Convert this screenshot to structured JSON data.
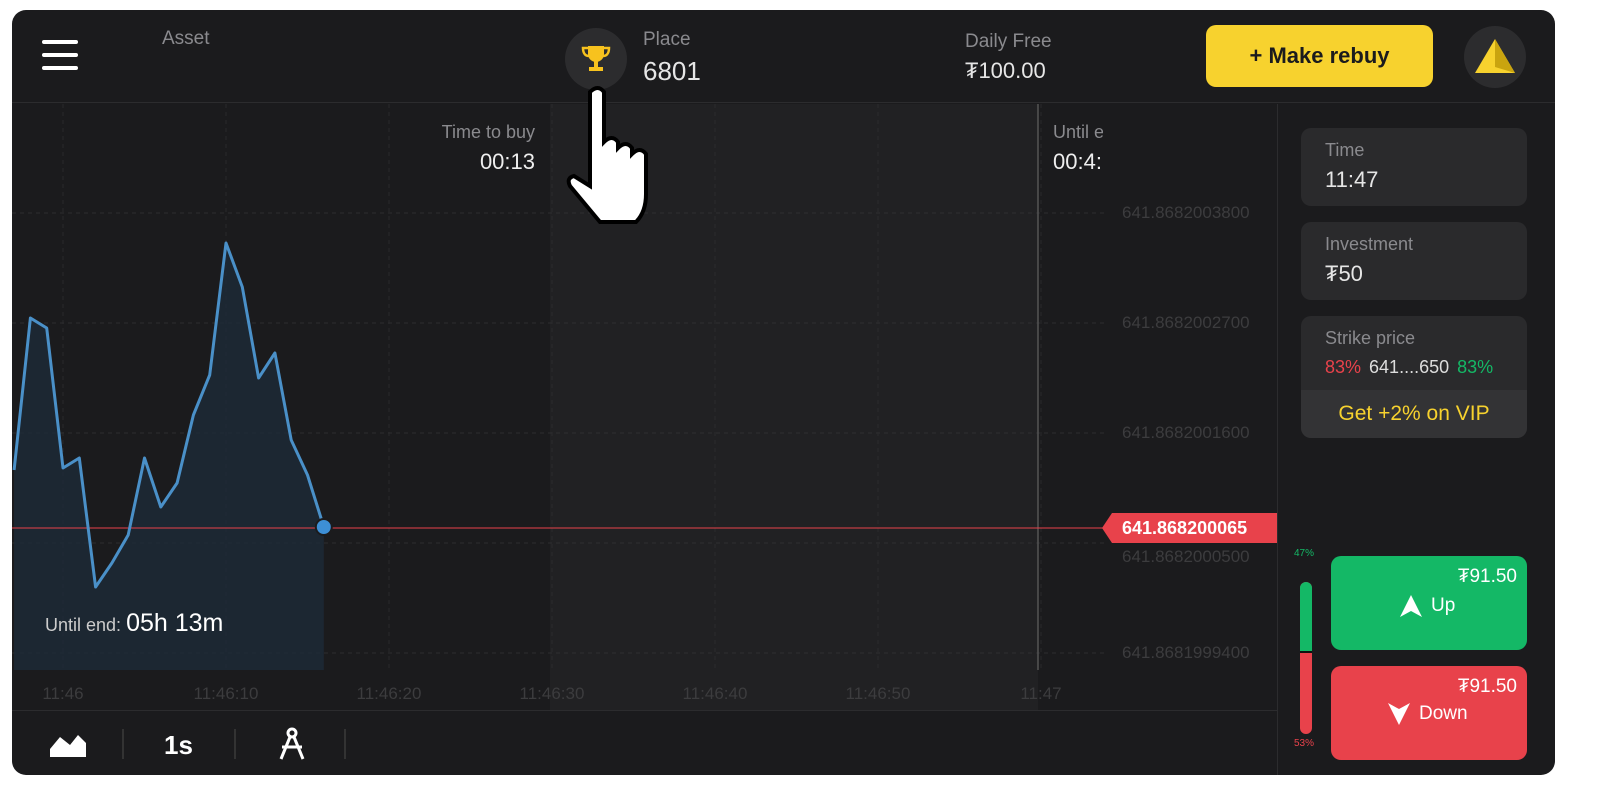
{
  "header": {
    "asset_label": "Asset",
    "place_label": "Place",
    "place_value": "6801",
    "daily_label": "Daily Free",
    "daily_value": "₮100.00",
    "rebuy_label": "+ Make rebuy"
  },
  "chart": {
    "time_to_buy_label": "Time to buy",
    "time_to_buy_value": "00:13",
    "until_end_label_top": "Until e",
    "until_end_value_top": "00:4:",
    "until_end_label": "Until end:",
    "until_end_value": "05h 13m",
    "current_price": "641.868200065",
    "colors": {
      "line": "#4a90c8",
      "price_line": "#e8424b",
      "up": "#14b866",
      "down": "#e8424b",
      "accent": "#f7d22e"
    }
  },
  "chart_data": {
    "type": "line",
    "y_ticks": [
      "641.8682003800",
      "641.8682002700",
      "641.8682001600",
      "641.8682000500",
      "641.8681999400"
    ],
    "x_ticks": [
      "11:46",
      "11:46:10",
      "11:46:20",
      "11:46:30",
      "11:46:40",
      "11:46:50",
      "11:47"
    ],
    "x": [
      "11:45:57",
      "11:45:58",
      "11:45:59",
      "11:46:00",
      "11:46:01",
      "11:46:02",
      "11:46:03",
      "11:46:04",
      "11:46:05",
      "11:46:06",
      "11:46:07",
      "11:46:08",
      "11:46:09",
      "11:46:10",
      "11:46:11",
      "11:46:12",
      "11:46:13",
      "11:46:14",
      "11:46:15",
      "11:46:16"
    ],
    "y": [
      641.868200123,
      641.868200275,
      641.868200265,
      641.868200125,
      641.868200135,
      641.868200006,
      641.86820003,
      641.868200058,
      641.868200135,
      641.868200086,
      641.86820011,
      641.868200178,
      641.868200218,
      641.86820035,
      641.868200306,
      641.868200215,
      641.86820024,
      641.868200153,
      641.868200118,
      641.868200066
    ],
    "ylim": [
      641.8681999,
      641.8682004
    ],
    "grid": true
  },
  "sidebar": {
    "time_label": "Time",
    "time_value": "11:47",
    "investment_label": "Investment",
    "investment_value": "₮50",
    "strike_label": "Strike price",
    "strike_down_pct": "83%",
    "strike_value": "641....650",
    "strike_up_pct": "83%",
    "vip_label": "Get +2% on VIP",
    "up_pct": "47%",
    "down_pct": "53%",
    "up_share": 47,
    "up_payout": "₮91.50",
    "up_label": "Up",
    "down_payout": "₮91.50",
    "down_label": "Down"
  },
  "toolbar": {
    "timeframe": "1s"
  }
}
